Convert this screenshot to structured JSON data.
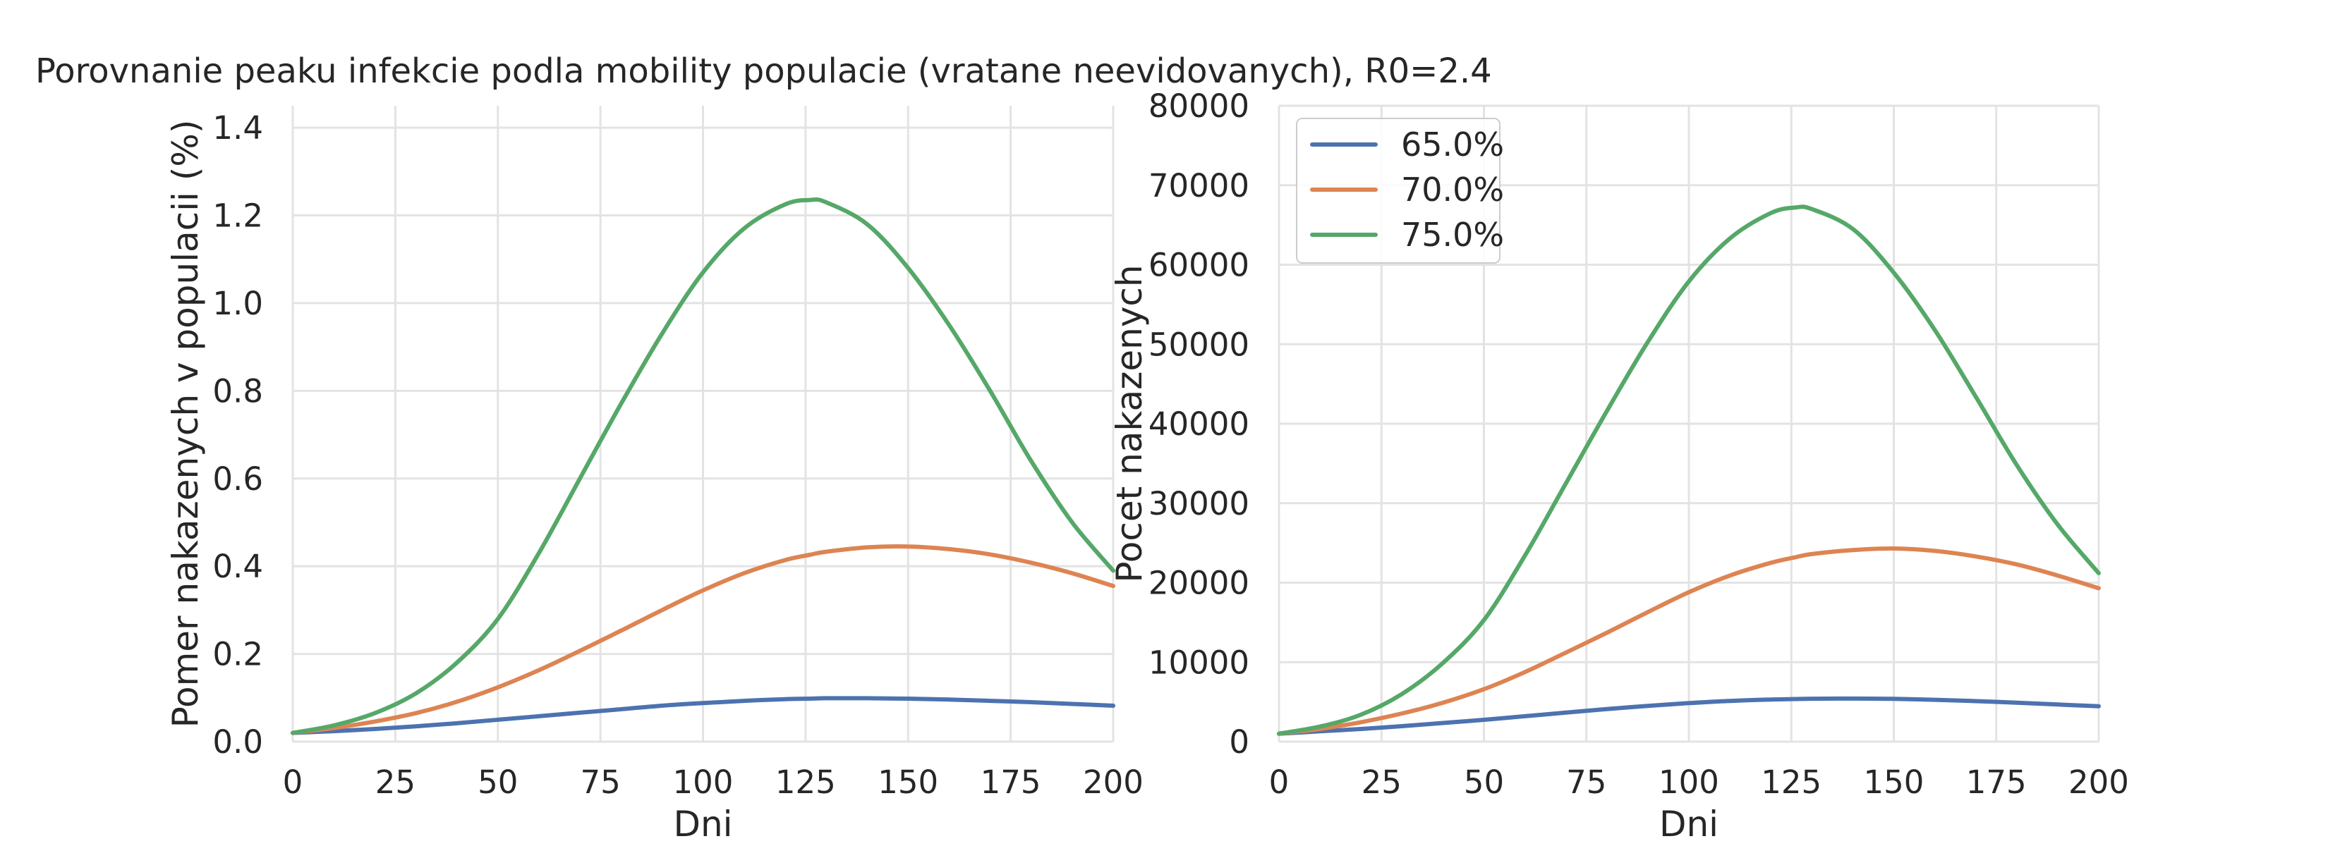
{
  "title": "Porovnanie peaku infekcie podla mobility populacie (vratane neevidovanych), R0=2.4",
  "colors": {
    "65": "#4c72b0",
    "70": "#dd8452",
    "75": "#55a868",
    "grid": "#e3e3e3",
    "text": "#262626"
  },
  "legend": {
    "placement": "upper-left",
    "entries": [
      {
        "label": "65.0%",
        "color": "#4c72b0"
      },
      {
        "label": "70.0%",
        "color": "#dd8452"
      },
      {
        "label": "75.0%",
        "color": "#55a868"
      }
    ]
  },
  "chart_data": [
    {
      "type": "line",
      "xlabel": "Dni",
      "ylabel": "Pomer nakazenych v populacii (%)",
      "xlim": [
        0,
        200
      ],
      "ylim": [
        0,
        1.45
      ],
      "xticks": [
        "0",
        "25",
        "50",
        "75",
        "100",
        "125",
        "150",
        "175",
        "200"
      ],
      "xtick_values": [
        0,
        25,
        50,
        75,
        100,
        125,
        150,
        175,
        200
      ],
      "yticks": [
        "0.0",
        "0.2",
        "0.4",
        "0.6",
        "0.8",
        "1.0",
        "1.2",
        "1.4"
      ],
      "ytick_values": [
        0,
        0.2,
        0.4,
        0.6,
        0.8,
        1.0,
        1.2,
        1.4
      ],
      "grid": true,
      "x": [
        0,
        10,
        20,
        30,
        40,
        50,
        60,
        70,
        80,
        90,
        100,
        110,
        120,
        126,
        130,
        140,
        150,
        160,
        170,
        180,
        190,
        200
      ],
      "series": [
        {
          "name": "65.0%",
          "color": "#4c72b0",
          "values": [
            0.02,
            0.024,
            0.029,
            0.035,
            0.042,
            0.05,
            0.058,
            0.066,
            0.074,
            0.082,
            0.088,
            0.093,
            0.097,
            0.098,
            0.099,
            0.099,
            0.098,
            0.096,
            0.093,
            0.09,
            0.086,
            0.082
          ]
        },
        {
          "name": "70.0%",
          "color": "#dd8452",
          "values": [
            0.02,
            0.031,
            0.046,
            0.065,
            0.091,
            0.124,
            0.163,
            0.207,
            0.253,
            0.3,
            0.345,
            0.384,
            0.414,
            0.426,
            0.433,
            0.443,
            0.445,
            0.439,
            0.427,
            0.408,
            0.384,
            0.355
          ]
        },
        {
          "name": "75.0%",
          "color": "#55a868",
          "values": [
            0.02,
            0.037,
            0.065,
            0.11,
            0.18,
            0.28,
            0.43,
            0.6,
            0.77,
            0.93,
            1.07,
            1.17,
            1.225,
            1.235,
            1.23,
            1.18,
            1.08,
            0.95,
            0.8,
            0.64,
            0.5,
            0.39
          ]
        }
      ]
    },
    {
      "type": "line",
      "xlabel": "Dni",
      "ylabel": "Pocet nakazenych",
      "xlim": [
        0,
        200
      ],
      "ylim": [
        0,
        80000
      ],
      "xticks": [
        "0",
        "25",
        "50",
        "75",
        "100",
        "125",
        "150",
        "175",
        "200"
      ],
      "xtick_values": [
        0,
        25,
        50,
        75,
        100,
        125,
        150,
        175,
        200
      ],
      "yticks": [
        "0",
        "10000",
        "20000",
        "30000",
        "40000",
        "50000",
        "60000",
        "70000",
        "80000"
      ],
      "ytick_values": [
        0,
        10000,
        20000,
        30000,
        40000,
        50000,
        60000,
        70000,
        80000
      ],
      "grid": true,
      "legend": true,
      "x": [
        0,
        10,
        20,
        30,
        40,
        50,
        60,
        70,
        80,
        90,
        100,
        110,
        120,
        126,
        130,
        140,
        150,
        160,
        170,
        180,
        190,
        200
      ],
      "series": [
        {
          "name": "65.0%",
          "color": "#4c72b0",
          "values": [
            1000,
            1300,
            1600,
            1950,
            2350,
            2750,
            3200,
            3650,
            4100,
            4500,
            4850,
            5120,
            5300,
            5370,
            5400,
            5420,
            5380,
            5270,
            5100,
            4900,
            4670,
            4450
          ]
        },
        {
          "name": "70.0%",
          "color": "#dd8452",
          "values": [
            1000,
            1600,
            2450,
            3550,
            4900,
            6600,
            8750,
            11200,
            13700,
            16300,
            18800,
            20900,
            22500,
            23200,
            23600,
            24100,
            24300,
            24000,
            23300,
            22300,
            20900,
            19300
          ]
        },
        {
          "name": "75.0%",
          "color": "#55a868",
          "values": [
            1000,
            1900,
            3400,
            6000,
            9900,
            15300,
            23400,
            32500,
            41600,
            50300,
            57900,
            63300,
            66500,
            67200,
            67000,
            64500,
            59000,
            51800,
            43400,
            34800,
            27300,
            21200
          ]
        }
      ]
    }
  ]
}
